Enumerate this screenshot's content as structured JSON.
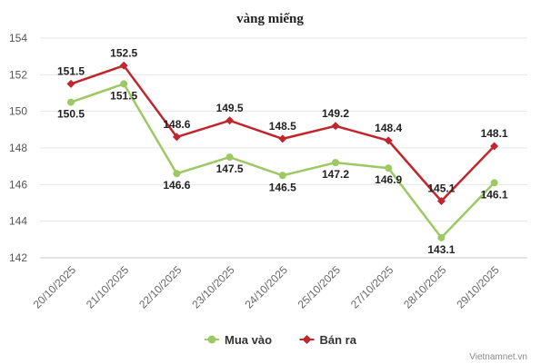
{
  "chart_data": {
    "type": "line",
    "title": "vàng miếng",
    "categories": [
      "20/10/2025",
      "21/10/2025",
      "22/10/2025",
      "23/10/2025",
      "24/10/2025",
      "25/10/2025",
      "27/10/2025",
      "28/10/2025",
      "29/10/2025"
    ],
    "series": [
      {
        "name": "Mua vào",
        "color": "#9dc864",
        "marker": "circle",
        "values": [
          150.5,
          151.5,
          146.6,
          147.5,
          146.5,
          147.2,
          146.9,
          143.1,
          146.1
        ]
      },
      {
        "name": "Bán ra",
        "color": "#c0262d",
        "marker": "diamond",
        "values": [
          151.5,
          152.5,
          148.6,
          149.5,
          148.5,
          149.2,
          148.4,
          145.1,
          148.1
        ]
      }
    ],
    "ylim": [
      142,
      154
    ],
    "yticks": [
      142,
      144,
      146,
      148,
      150,
      152,
      154
    ],
    "grid": true,
    "legend_position": "bottom",
    "source": "Vietnamnet.vn"
  }
}
